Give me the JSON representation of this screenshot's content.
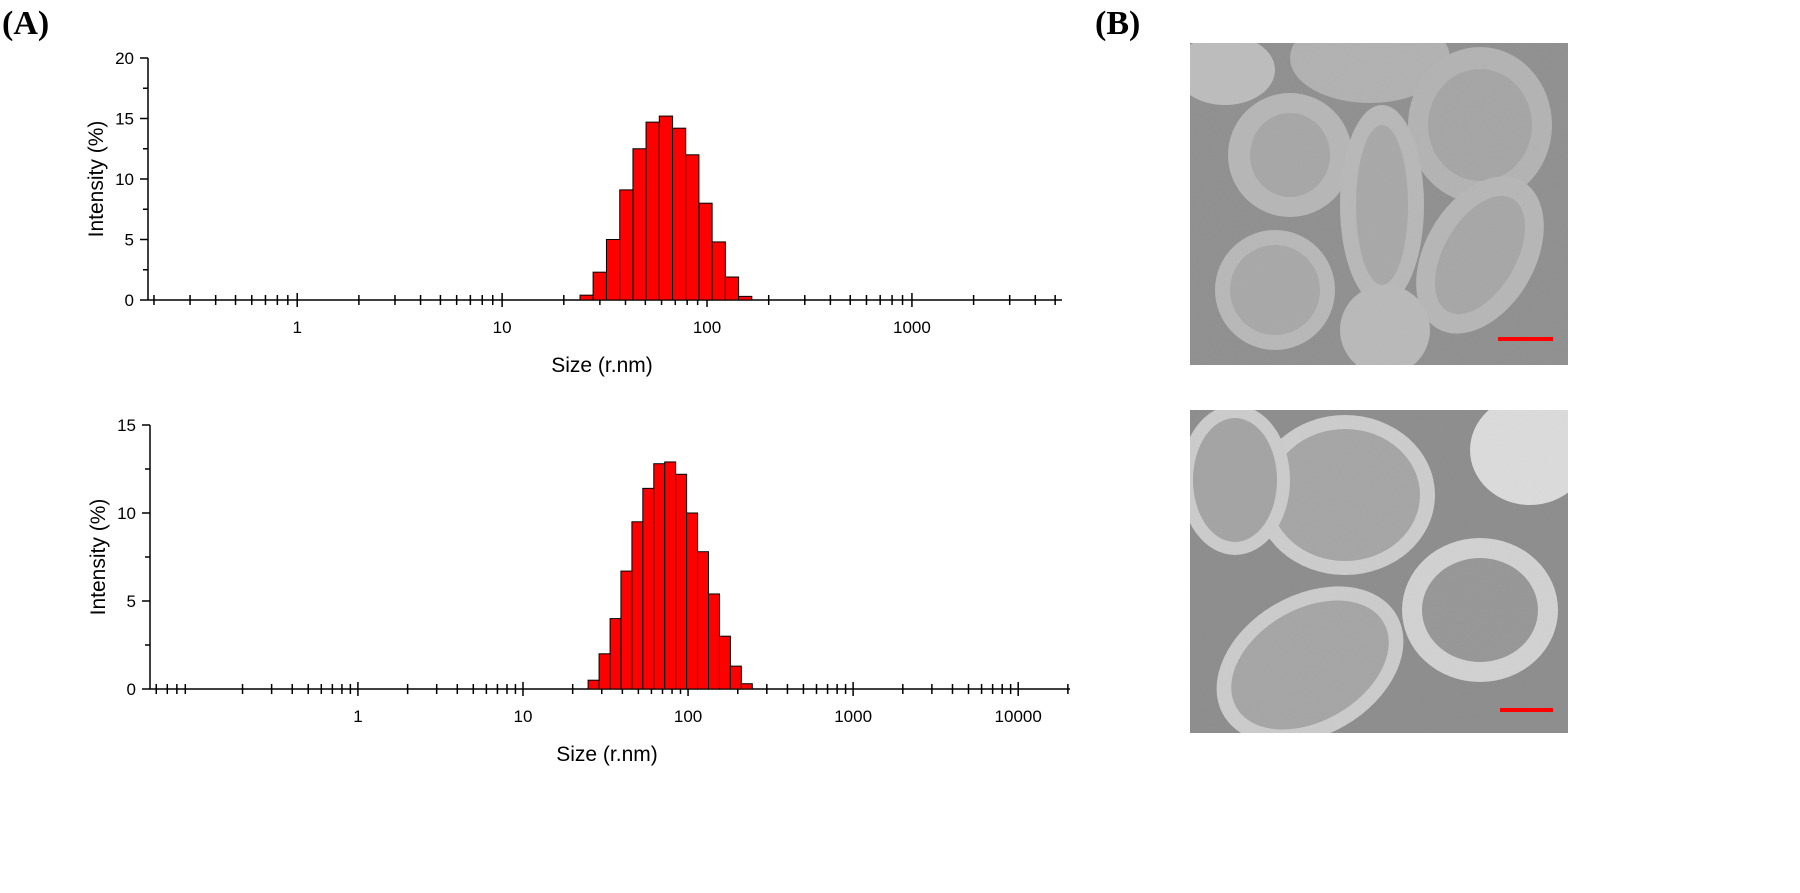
{
  "panel_labels": [
    "(A)",
    "(B)"
  ],
  "chart_data": [
    {
      "type": "histogram",
      "xlabel": "Size (r.nm)",
      "ylabel": "Intensity (%)",
      "xscale": "log",
      "color": "#ff0000",
      "bins": [
        24.0,
        27.8,
        32.3,
        37.5,
        43.5,
        50.4,
        58.5,
        67.9,
        78.7,
        91.3,
        105.9,
        122.9,
        142.6,
        165.4
      ],
      "values": [
        0.4,
        2.3,
        5.0,
        9.1,
        12.5,
        14.7,
        15.2,
        14.2,
        12.0,
        8.0,
        4.8,
        1.9,
        0.3
      ],
      "xlim": [
        0.187,
        5400
      ],
      "xticks": [
        1,
        10,
        100,
        1000
      ],
      "minor_xticks": [
        0.2,
        0.3,
        0.4,
        0.5,
        0.6,
        0.7,
        0.8,
        0.9,
        2,
        3,
        4,
        5,
        6,
        7,
        8,
        9,
        20,
        30,
        40,
        50,
        60,
        70,
        80,
        90,
        200,
        300,
        400,
        500,
        600,
        700,
        800,
        900,
        2000,
        3000,
        4000,
        5000
      ],
      "ylim": [
        0,
        20
      ],
      "yticks": [
        0,
        5,
        10,
        15,
        20
      ],
      "minor_yticks": [
        2.5,
        7.5,
        12.5,
        17.5
      ]
    },
    {
      "type": "histogram",
      "xlabel": "Size (r.nm)",
      "ylabel": "Intensity (%)",
      "xscale": "log",
      "color": "#ff0000",
      "bins": [
        24.8,
        28.9,
        33.7,
        39.2,
        45.7,
        53.2,
        62.0,
        72.2,
        84.1,
        98.0,
        114.2,
        133.0,
        155.0,
        180.5,
        210.3,
        245.0
      ],
      "values": [
        0.5,
        2.0,
        4.0,
        6.7,
        9.5,
        11.4,
        12.8,
        12.9,
        12.2,
        10.0,
        7.8,
        5.4,
        3.0,
        1.3,
        0.3
      ],
      "xlim": [
        0.055,
        20600
      ],
      "xticks": [
        1,
        10,
        100,
        1000,
        10000
      ],
      "minor_xticks": [
        0.06,
        0.07,
        0.08,
        0.09,
        0.2,
        0.3,
        0.4,
        0.5,
        0.6,
        0.7,
        0.8,
        0.9,
        2,
        3,
        4,
        5,
        6,
        7,
        8,
        9,
        20,
        30,
        40,
        50,
        60,
        70,
        80,
        90,
        200,
        300,
        400,
        500,
        600,
        700,
        800,
        900,
        2000,
        3000,
        4000,
        5000,
        6000,
        7000,
        8000,
        9000,
        20000
      ],
      "ylim": [
        0,
        15
      ],
      "yticks": [
        0,
        5,
        10,
        15
      ],
      "minor_yticks": [
        2.5,
        7.5,
        12.5
      ]
    }
  ]
}
